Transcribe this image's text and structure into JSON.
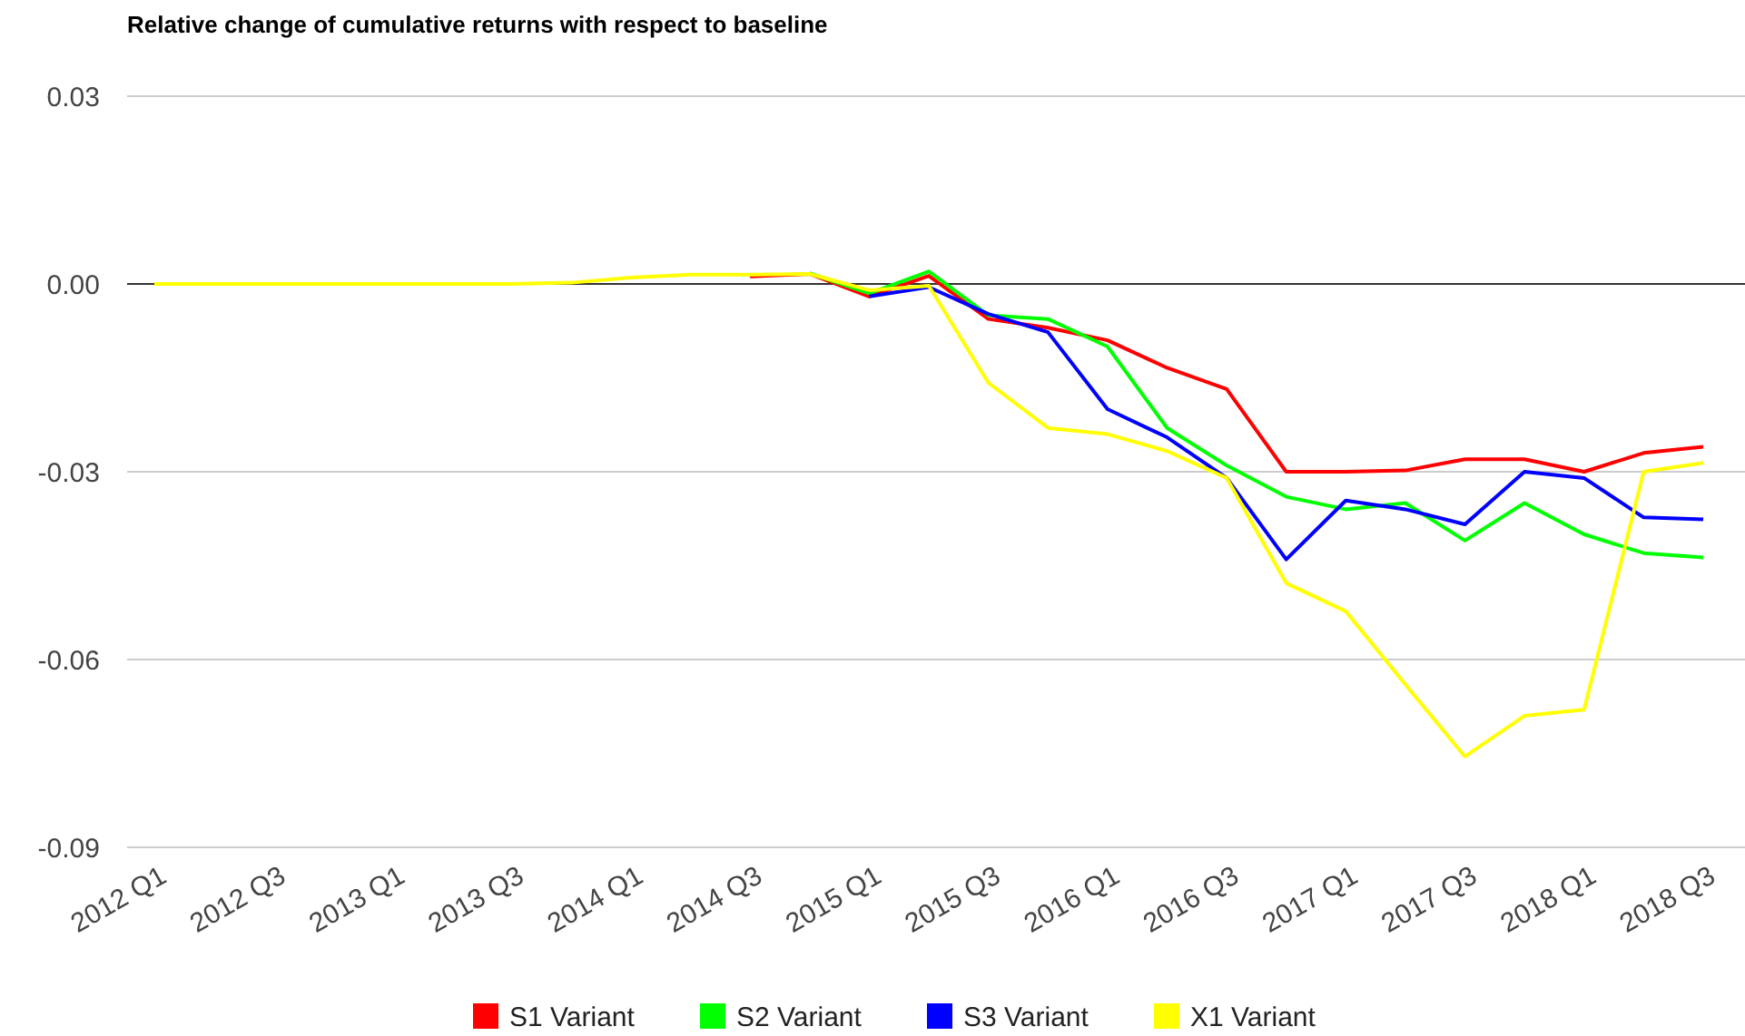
{
  "chart_data": {
    "type": "line",
    "title": "Relative change of cumulative returns with respect to baseline",
    "categories": [
      "2012 Q1",
      null,
      "2012 Q3",
      null,
      "2013 Q1",
      null,
      "2013 Q3",
      null,
      "2014 Q1",
      null,
      "2014 Q3",
      null,
      "2015 Q1",
      null,
      "2015 Q3",
      null,
      "2016 Q1",
      null,
      "2016 Q3",
      null,
      "2017 Q1",
      null,
      "2017 Q3",
      null,
      "2018 Q1",
      null,
      "2018 Q3"
    ],
    "series": [
      {
        "name": "S1 Variant",
        "color": "#ff0000",
        "values": [
          null,
          null,
          null,
          null,
          null,
          null,
          null,
          null,
          null,
          null,
          0.0012,
          0.0016,
          -0.002,
          0.0013,
          -0.0056,
          -0.007,
          -0.009,
          -0.0134,
          -0.0168,
          -0.03,
          -0.03,
          -0.0298,
          -0.028,
          -0.028,
          -0.03,
          -0.027,
          -0.026
        ]
      },
      {
        "name": "S2 Variant",
        "color": "#00ff00",
        "values": [
          null,
          null,
          null,
          null,
          null,
          null,
          null,
          null,
          null,
          null,
          null,
          0.0017,
          -0.0015,
          0.002,
          -0.005,
          -0.0056,
          -0.01,
          -0.023,
          -0.029,
          -0.034,
          -0.036,
          -0.035,
          -0.041,
          -0.035,
          -0.04,
          -0.043,
          -0.0437
        ]
      },
      {
        "name": "S3 Variant",
        "color": "#0000ff",
        "values": [
          null,
          null,
          null,
          null,
          null,
          null,
          null,
          null,
          null,
          null,
          null,
          null,
          -0.002,
          -0.0005,
          -0.0048,
          -0.0077,
          -0.02,
          -0.0245,
          -0.031,
          -0.044,
          -0.0346,
          -0.036,
          -0.0384,
          -0.03,
          -0.031,
          -0.0373,
          -0.0376
        ]
      },
      {
        "name": "X1 Variant",
        "color": "#ffff00",
        "values": [
          0,
          0,
          0,
          0,
          0,
          0,
          0,
          0.0002,
          0.001,
          0.0015,
          0.0015,
          0.0016,
          -0.001,
          -0.0003,
          -0.0158,
          -0.023,
          -0.024,
          -0.0267,
          -0.031,
          -0.0478,
          -0.0523,
          -0.064,
          -0.0755,
          -0.069,
          -0.068,
          -0.03,
          -0.0286
        ]
      }
    ],
    "ylim": [
      -0.09,
      0.03
    ],
    "yticks": [
      {
        "value": 0.03,
        "label": "0.03"
      },
      {
        "value": 0,
        "label": "0.00"
      },
      {
        "value": -0.03,
        "label": "-0.03"
      },
      {
        "value": -0.06,
        "label": "-0.06"
      },
      {
        "value": -0.09,
        "label": "-0.09"
      }
    ],
    "grid": "y",
    "legend": "bottom",
    "marker": "none",
    "line_style": "solid",
    "ref_lines": [
      {
        "axis": "y",
        "value": 0,
        "color": "#333333"
      }
    ]
  }
}
